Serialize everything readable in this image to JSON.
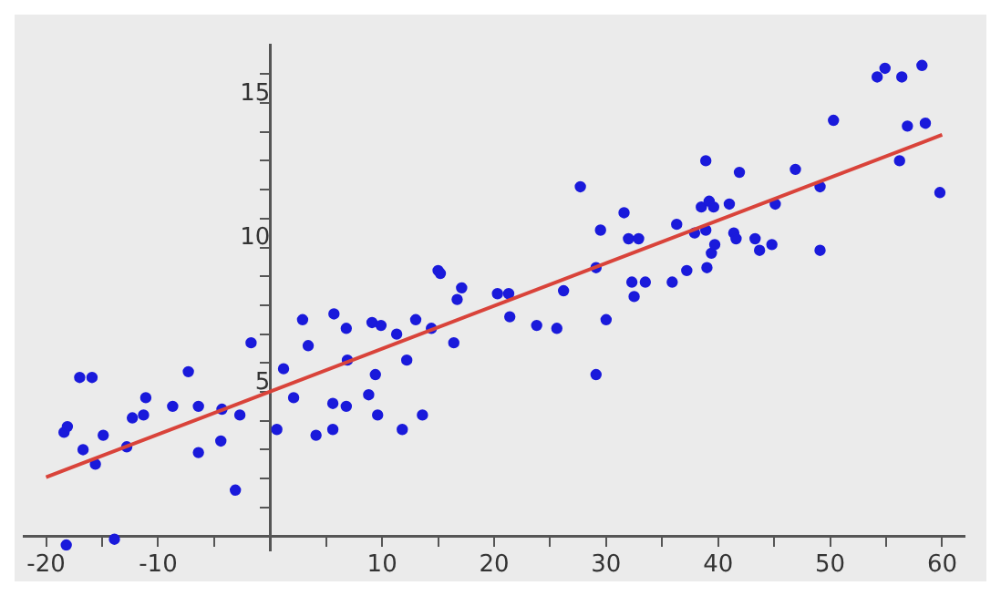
{
  "chart_data": {
    "type": "scatter",
    "xlim": [
      -22,
      62
    ],
    "ylim": [
      -0.5,
      17
    ],
    "xticks": [
      -20,
      {
        "value": -15,
        "label": null
      },
      -10,
      {
        "value": -5,
        "label": null
      },
      {
        "value": 0,
        "label": null
      },
      {
        "value": 5,
        "label": null
      },
      10,
      {
        "value": 15,
        "label": null
      },
      20,
      {
        "value": 25,
        "label": null
      },
      30,
      {
        "value": 35,
        "label": null
      },
      40,
      {
        "value": 45,
        "label": null
      },
      50,
      {
        "value": 55,
        "label": null
      },
      60
    ],
    "yticks": [
      {
        "value": 1,
        "label": null
      },
      {
        "value": 2,
        "label": null
      },
      {
        "value": 3,
        "label": null
      },
      {
        "value": 4,
        "label": null
      },
      5,
      {
        "value": 6,
        "label": null
      },
      {
        "value": 7,
        "label": null
      },
      {
        "value": 8,
        "label": null
      },
      {
        "value": 9,
        "label": null
      },
      10,
      {
        "value": 11,
        "label": null
      },
      {
        "value": 12,
        "label": null
      },
      {
        "value": 13,
        "label": null
      },
      {
        "value": 14,
        "label": null
      },
      15,
      {
        "value": 16,
        "label": null
      }
    ],
    "grid": false,
    "legend": false,
    "marker": "circle",
    "series": [
      {
        "type": "scatter",
        "color": "#1a1adb",
        "x": [
          -18.4,
          -18.1,
          -17.0,
          -15.9,
          -16.7,
          -15.6,
          -14.9,
          -12.8,
          -12.3,
          -11.3,
          -11.1,
          -8.7,
          -7.3,
          -6.4,
          -6.4,
          -4.4,
          -4.3,
          -3.1,
          -2.7,
          -1.7,
          0.6,
          1.2,
          -18.2,
          -13.9,
          2.1,
          2.9,
          3.4,
          4.1,
          5.6,
          5.6,
          5.7,
          6.8,
          6.9,
          6.8,
          8.8,
          9.1,
          9.4,
          9.6,
          9.9,
          11.3,
          11.8,
          12.2,
          13.0,
          13.6,
          14.4,
          15.0,
          15.2,
          16.4,
          16.7,
          17.1,
          20.3,
          21.3,
          21.4,
          23.8,
          25.6,
          26.2,
          27.7,
          29.1,
          29.1,
          29.5,
          30.0,
          31.6,
          32.0,
          32.9,
          32.3,
          33.5,
          32.5,
          35.9,
          36.3,
          37.2,
          37.9,
          38.5,
          38.9,
          39.2,
          39.6,
          38.9,
          39.0,
          39.4,
          39.7,
          41.0,
          41.4,
          41.6,
          41.9,
          43.3,
          43.7,
          44.8,
          45.1,
          46.9,
          49.1,
          49.1,
          50.3,
          54.2,
          54.9,
          56.4,
          58.2,
          56.2,
          56.9,
          58.5,
          59.8
        ],
        "values": [
          3.6,
          3.8,
          5.5,
          5.5,
          3.0,
          2.5,
          3.5,
          3.1,
          4.1,
          4.2,
          4.8,
          4.5,
          5.7,
          4.5,
          2.9,
          3.3,
          4.4,
          1.6,
          4.2,
          6.7,
          3.7,
          5.8,
          -0.3,
          -0.1,
          4.8,
          7.5,
          6.6,
          3.5,
          4.6,
          3.7,
          7.7,
          7.2,
          6.1,
          4.5,
          4.9,
          7.4,
          5.6,
          4.2,
          7.3,
          7.0,
          3.7,
          6.1,
          7.5,
          4.2,
          7.2,
          9.2,
          9.1,
          6.7,
          8.2,
          8.6,
          8.4,
          8.4,
          7.6,
          7.3,
          7.2,
          8.5,
          12.1,
          5.6,
          9.3,
          10.6,
          7.5,
          11.2,
          10.3,
          10.3,
          8.8,
          8.8,
          8.3,
          8.8,
          10.8,
          9.2,
          10.5,
          11.4,
          13.0,
          11.6,
          11.4,
          10.6,
          9.3,
          9.8,
          10.1,
          11.5,
          10.5,
          10.3,
          12.6,
          10.3,
          9.9,
          10.1,
          11.5,
          12.7,
          12.1,
          9.9,
          14.4,
          15.9,
          16.2,
          15.9,
          16.3,
          13.0,
          14.2,
          14.3,
          11.9
        ]
      },
      {
        "type": "line",
        "color": "#d9433a",
        "marker": "none",
        "x": [
          -20,
          60
        ],
        "values": [
          2.05,
          13.9
        ]
      }
    ]
  }
}
